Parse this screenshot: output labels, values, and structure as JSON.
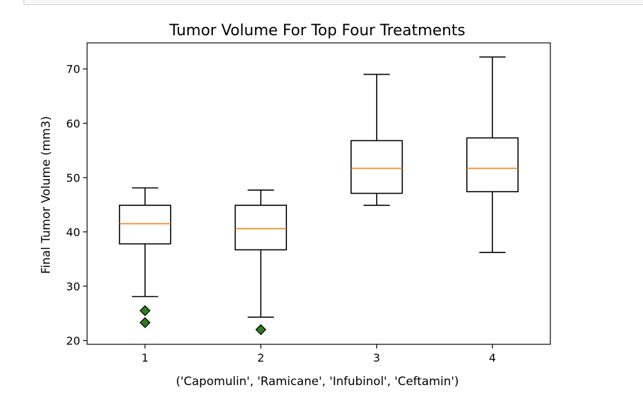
{
  "chart_data": {
    "type": "box",
    "title": "Tumor Volume For Top Four Treatments",
    "xlabel": "('Capomulin', 'Ramicane', 'Infubinol', 'Ceftamin')",
    "ylabel": "Final Tumor Volume (mm3)",
    "categories": [
      "1",
      "2",
      "3",
      "4"
    ],
    "ylim": [
      19.3,
      74.8
    ],
    "yticks": [
      20,
      30,
      40,
      50,
      60,
      70
    ],
    "grid": false,
    "colors": {
      "box": "#000000",
      "median": "#ff7f0e",
      "outlier": "#2e7d1e"
    },
    "boxes": [
      {
        "whislo": 28.1,
        "q1": 37.8,
        "med": 41.5,
        "q3": 44.9,
        "whishi": 48.1,
        "fliers": [
          25.5,
          23.3
        ]
      },
      {
        "whislo": 24.3,
        "q1": 36.7,
        "med": 40.6,
        "q3": 44.9,
        "whishi": 47.7,
        "fliers": [
          22.0
        ]
      },
      {
        "whislo": 44.9,
        "q1": 47.1,
        "med": 51.7,
        "q3": 56.8,
        "whishi": 69.0,
        "fliers": []
      },
      {
        "whislo": 36.2,
        "q1": 47.4,
        "med": 51.7,
        "q3": 57.3,
        "whishi": 72.2,
        "fliers": []
      }
    ]
  }
}
